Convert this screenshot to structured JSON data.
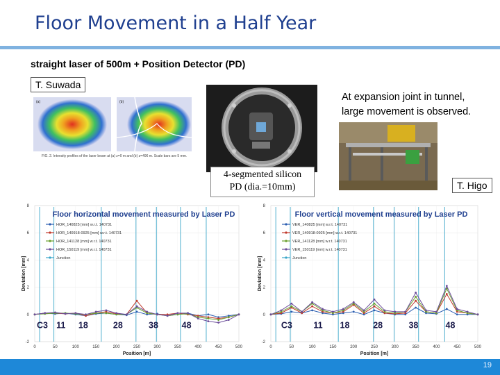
{
  "slide": {
    "title": "Floor Movement in a Half Year",
    "subtitle": "straight laser of 500m + Position Detector (PD)",
    "tag_suwada": "T. Suwada",
    "tag_higo": "T. Higo",
    "detector_caption_line1": "4-segmented silicon",
    "detector_caption_line2": "PD (dia.=10mm)",
    "expansion_line1": "At expansion joint in tunnel,",
    "expansion_line2": "large movement is observed.",
    "beam_caption": "FIG. 2. Intensity profiles of the laser beam at (a) z=0 m and (b) z=496 m. Scale bars are 5 mm.",
    "page_number": "19"
  },
  "colors": {
    "title": "#1f3f8f",
    "title_bar": "#7fb2e0",
    "footer_bar": "#1e88d8",
    "series": [
      "#2a5db0",
      "#c0392b",
      "#6a9f2e",
      "#6b4c9a",
      "#3aa6c9"
    ]
  },
  "chart_data": [
    {
      "type": "line",
      "title": "Floor horizontal movement measured by Laser PD",
      "xlabel": "Position [m]",
      "ylabel": "Deviation [mm]",
      "xlim": [
        0,
        500
      ],
      "ylim": [
        -2,
        8
      ],
      "x_ticks": [
        0,
        50,
        100,
        150,
        200,
        250,
        300,
        350,
        400,
        450,
        500
      ],
      "y_ticks": [
        -2,
        0,
        2,
        4,
        6,
        8
      ],
      "legend_position": "top-left",
      "series": [
        {
          "name": "HOR_140825 [mm] w.r.t. 140731",
          "x": [
            0,
            25,
            50,
            75,
            100,
            125,
            150,
            175,
            200,
            225,
            250,
            275,
            300,
            325,
            350,
            375,
            400,
            425,
            450,
            475,
            500
          ],
          "y": [
            0,
            0.1,
            0.05,
            0.1,
            0,
            -0.1,
            0.05,
            0.1,
            0,
            -0.05,
            0.2,
            0,
            0.05,
            -0.1,
            0,
            0.1,
            -0.1,
            0,
            -0.2,
            -0.1,
            0
          ]
        },
        {
          "name": "HOR_140918-0925 [mm] w.r.t. 140731",
          "x": [
            0,
            25,
            50,
            75,
            100,
            125,
            150,
            175,
            200,
            225,
            250,
            275,
            300,
            325,
            350,
            375,
            400,
            425,
            450,
            475,
            500
          ],
          "y": [
            0,
            0.1,
            0.1,
            0.05,
            0.1,
            -0.1,
            0.1,
            0.2,
            0.05,
            0,
            1.0,
            0.1,
            0,
            0,
            0.1,
            0,
            -0.1,
            -0.2,
            -0.3,
            -0.2,
            0
          ]
        },
        {
          "name": "HOR_141128 [mm] w.r.t. 140731",
          "x": [
            0,
            25,
            50,
            75,
            100,
            125,
            150,
            175,
            200,
            225,
            250,
            275,
            300,
            325,
            350,
            375,
            400,
            425,
            450,
            475,
            500
          ],
          "y": [
            0,
            0.05,
            0.1,
            0.1,
            0.05,
            0,
            0.1,
            0.1,
            0,
            0,
            0.5,
            0.1,
            0,
            -0.1,
            0,
            0.05,
            -0.2,
            -0.3,
            -0.4,
            -0.2,
            0
          ]
        },
        {
          "name": "HOR_150119 [mm] w.r.t. 140731",
          "x": [
            0,
            25,
            50,
            75,
            100,
            125,
            150,
            175,
            200,
            225,
            250,
            275,
            300,
            325,
            350,
            375,
            400,
            425,
            450,
            475,
            500
          ],
          "y": [
            0,
            0.1,
            0.15,
            0.05,
            0.1,
            0,
            0.2,
            0.3,
            0.1,
            0,
            0.6,
            0.2,
            0,
            -0.1,
            0.1,
            0.1,
            -0.3,
            -0.5,
            -0.6,
            -0.4,
            0
          ]
        }
      ],
      "junctions": [
        {
          "label": "Junction",
          "x": [
            12,
            47,
            163,
            248,
            298,
            357,
            420
          ]
        }
      ],
      "station_labels": [
        {
          "label": "C3",
          "x": 5
        },
        {
          "label": "11",
          "x": 53
        },
        {
          "label": "18",
          "x": 107
        },
        {
          "label": "28",
          "x": 192
        },
        {
          "label": "38",
          "x": 279
        },
        {
          "label": "48",
          "x": 360
        }
      ]
    },
    {
      "type": "line",
      "title": "Floor vertical movement measured by Laser PD",
      "xlabel": "Position [m]",
      "ylabel": "Deviation [mm]",
      "xlim": [
        0,
        500
      ],
      "ylim": [
        -2,
        8
      ],
      "x_ticks": [
        0,
        50,
        100,
        150,
        200,
        250,
        300,
        350,
        400,
        450,
        500
      ],
      "y_ticks": [
        -2,
        0,
        2,
        4,
        6,
        8
      ],
      "legend_position": "top-left",
      "series": [
        {
          "name": "VER_140825 [mm] w.r.t. 140731",
          "x": [
            0,
            25,
            50,
            75,
            100,
            125,
            150,
            175,
            200,
            225,
            250,
            275,
            300,
            325,
            350,
            375,
            400,
            425,
            450,
            475,
            500
          ],
          "y": [
            0,
            0.05,
            0.2,
            0.1,
            0.3,
            0.1,
            0,
            0.1,
            0.2,
            0,
            0.3,
            0.1,
            0,
            0,
            0.5,
            0.1,
            0.05,
            0.4,
            0,
            0,
            0
          ]
        },
        {
          "name": "VER_140918-0925 [mm] w.r.t. 140731",
          "x": [
            0,
            25,
            50,
            75,
            100,
            125,
            150,
            175,
            200,
            225,
            250,
            275,
            300,
            325,
            350,
            375,
            400,
            425,
            450,
            475,
            500
          ],
          "y": [
            0,
            0.1,
            0.5,
            0.1,
            0.6,
            0.2,
            0.1,
            0.2,
            0.7,
            0.1,
            0.6,
            0.1,
            0.05,
            0.1,
            1.0,
            0.2,
            0.1,
            1.5,
            0.2,
            0.1,
            0
          ]
        },
        {
          "name": "VER_141128 [mm] w.r.t. 140731",
          "x": [
            0,
            25,
            50,
            75,
            100,
            125,
            150,
            175,
            200,
            225,
            250,
            275,
            300,
            325,
            350,
            375,
            400,
            425,
            450,
            475,
            500
          ],
          "y": [
            0,
            0.2,
            0.6,
            0.2,
            0.8,
            0.3,
            0.1,
            0.3,
            0.8,
            0.2,
            0.8,
            0.2,
            0.1,
            0.2,
            1.3,
            0.2,
            0.1,
            1.9,
            0.3,
            0.1,
            0
          ]
        },
        {
          "name": "VER_150119 [mm] w.r.t. 140731",
          "x": [
            0,
            25,
            50,
            75,
            100,
            125,
            150,
            175,
            200,
            225,
            250,
            275,
            300,
            325,
            350,
            375,
            400,
            425,
            450,
            475,
            500
          ],
          "y": [
            0,
            0.3,
            0.8,
            0.2,
            0.9,
            0.4,
            0.2,
            0.4,
            0.9,
            0.3,
            1.1,
            0.3,
            0.2,
            0.2,
            1.6,
            0.3,
            0.2,
            2.1,
            0.4,
            0.2,
            0
          ]
        }
      ],
      "junctions": [
        {
          "label": "Junction",
          "x": [
            12,
            47,
            163,
            248,
            298,
            357,
            420
          ]
        }
      ],
      "station_labels": [
        {
          "label": "C3",
          "x": 25
        },
        {
          "label": "11",
          "x": 103
        },
        {
          "label": "18",
          "x": 167
        },
        {
          "label": "28",
          "x": 247
        },
        {
          "label": "38",
          "x": 333
        },
        {
          "label": "48",
          "x": 422
        }
      ]
    }
  ]
}
